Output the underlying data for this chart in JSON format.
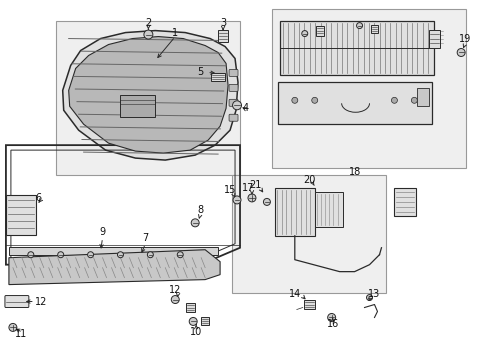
{
  "bg_color": "#ffffff",
  "line_color": "#2a2a2a",
  "fill_light": "#efefef",
  "fill_mid": "#e0e0e0",
  "fill_dark": "#c8c8c8"
}
